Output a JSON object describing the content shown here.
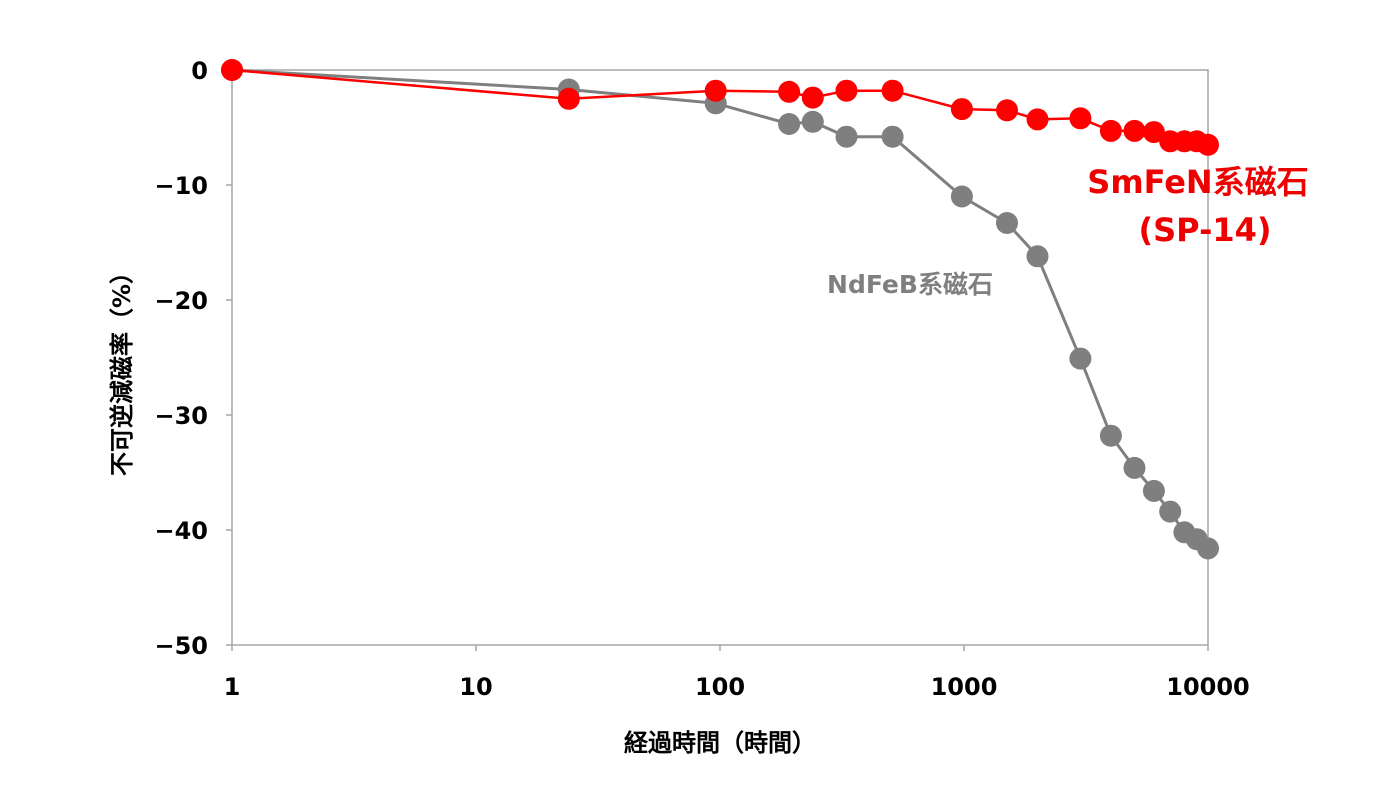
{
  "chart_data": {
    "type": "line",
    "title": "",
    "xlabel": "経過時間（時間）",
    "ylabel": "不可逆減磁率（%）",
    "x_scale": "log",
    "xlim": [
      1,
      10000
    ],
    "ylim": [
      -50,
      0
    ],
    "x_ticks": [
      "1",
      "10",
      "100",
      "1000",
      "10000"
    ],
    "y_ticks": [
      "0",
      "-10",
      "-20",
      "-30",
      "-40",
      "-50"
    ],
    "grid": false,
    "series": [
      {
        "name": "NdFeB系磁石",
        "color": "#7f7f7f",
        "x": [
          1,
          24,
          96,
          192,
          240,
          330,
          510,
          980,
          1500,
          2000,
          3000,
          4000,
          5000,
          6000,
          7000,
          8000,
          9000,
          10000
        ],
        "y": [
          0,
          -1.7,
          -2.9,
          -4.7,
          -4.5,
          -5.8,
          -5.8,
          -11.0,
          -13.3,
          -16.2,
          -25.1,
          -31.8,
          -34.6,
          -36.6,
          -38.4,
          -40.2,
          -40.8,
          -41.6
        ]
      },
      {
        "name": "SmFeN系磁石",
        "name_line2": "(SP-14)",
        "color": "#ff0000",
        "x": [
          1,
          24,
          96,
          192,
          240,
          330,
          510,
          980,
          1500,
          2000,
          3000,
          4000,
          5000,
          6000,
          7000,
          8000,
          9000,
          10000
        ],
        "y": [
          0,
          -2.5,
          -1.8,
          -1.9,
          -2.4,
          -1.8,
          -1.8,
          -3.4,
          -3.5,
          -4.3,
          -4.2,
          -5.3,
          -5.3,
          -5.4,
          -6.2,
          -6.2,
          -6.2,
          -6.5
        ]
      }
    ]
  }
}
